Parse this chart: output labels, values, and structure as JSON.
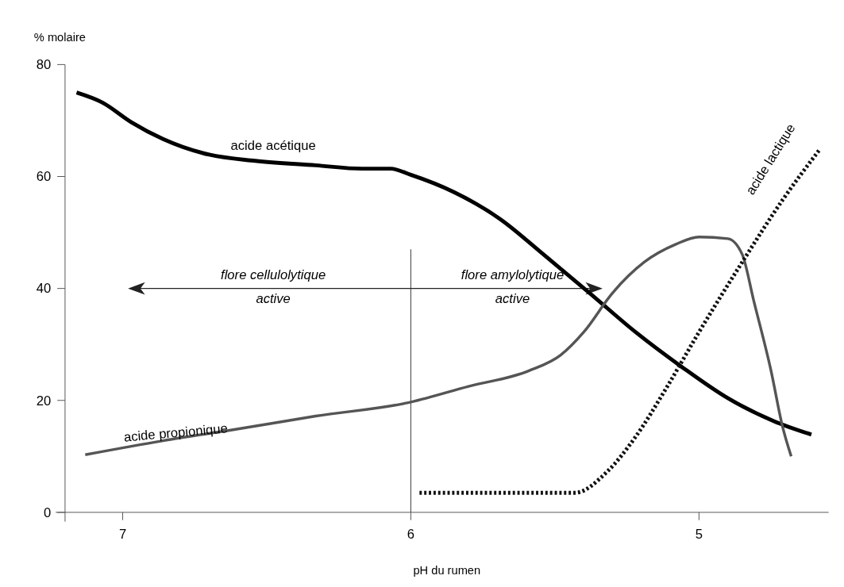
{
  "chart_data": {
    "type": "line",
    "xlabel": "pH du rumen",
    "ylabel": "% molaire",
    "xlim": [
      7.2,
      4.55
    ],
    "ylim": [
      0,
      80
    ],
    "xticks": [
      7,
      6,
      5
    ],
    "yticks": [
      0,
      20,
      40,
      60,
      80
    ],
    "grid": false,
    "marker": "none",
    "series": [
      {
        "name": "acide acétique",
        "color": "#000000",
        "line_style": "solid",
        "x": [
          7.16,
          7.07,
          6.97,
          6.86,
          6.7,
          6.54,
          6.33,
          6.17,
          6.07,
          6.0,
          5.85,
          5.69,
          5.54,
          5.38,
          5.22,
          5.06,
          4.9,
          4.74,
          4.61
        ],
        "values": [
          75,
          73.2,
          69.7,
          66.7,
          63.9,
          62.8,
          62,
          61.4,
          61.4,
          60.3,
          57.2,
          52.4,
          46.1,
          39.2,
          32.2,
          26,
          20.4,
          16.3,
          13.9
        ]
      },
      {
        "name": "acide propionique",
        "color": "#555555",
        "line_style": "solid",
        "x": [
          7.13,
          6.86,
          6.6,
          6.33,
          6.0,
          5.8,
          5.59,
          5.48,
          5.4,
          5.3,
          5.19,
          5.08,
          5.0,
          4.9,
          4.85,
          4.81,
          4.75,
          4.71,
          4.68
        ],
        "values": [
          10.3,
          12.8,
          14.9,
          17.2,
          19.7,
          22.5,
          25.3,
          28.1,
          32.2,
          39.2,
          44.7,
          47.9,
          49.2,
          48.9,
          46.1,
          37.8,
          25.3,
          15.3,
          10
        ]
      },
      {
        "name": "acide lactique",
        "color": "#111111",
        "line_style": "dotted",
        "x": [
          5.97,
          5.43,
          5.32,
          5.22,
          5.11,
          5.0,
          4.85,
          4.71,
          4.58
        ],
        "values": [
          3.5,
          3.5,
          7.2,
          13.5,
          22.5,
          32.2,
          44.7,
          55.8,
          64.9
        ]
      }
    ],
    "ref_lines": [
      {
        "axis": "x",
        "value": 6,
        "color": "#555555"
      }
    ],
    "annotations": [
      "flore cellulolytique\nactive",
      "flore amylolytique\nactive"
    ]
  }
}
